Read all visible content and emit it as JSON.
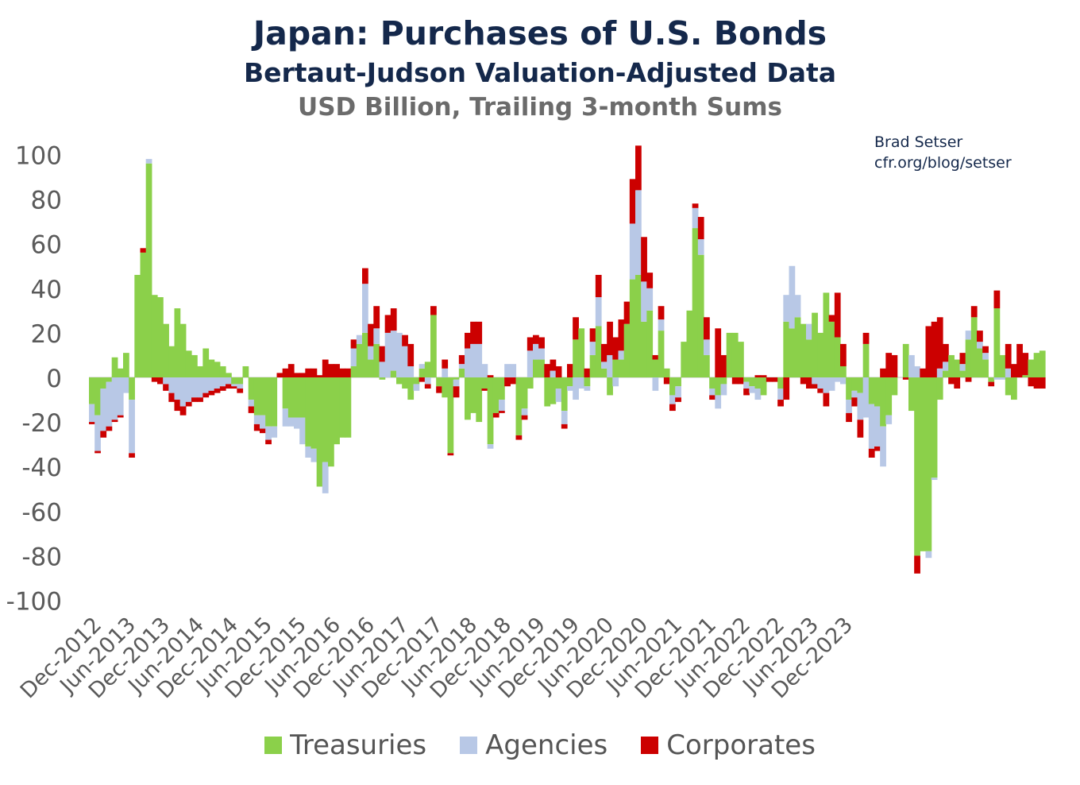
{
  "title": "Japan: Purchases of U.S. Bonds",
  "subtitle": "Bertaut-Judson Valuation-Adjusted Data",
  "units": "USD Billion, Trailing 3-month Sums",
  "credit": {
    "line1": "Brad Setser",
    "line2": "cfr.org/blog/setser"
  },
  "colors": {
    "treasuries": "#8bd04a",
    "agencies": "#b8c8e6",
    "corporates": "#cc0000",
    "axis": "#e2e2e2"
  },
  "chart_data": {
    "type": "bar",
    "stacked": true,
    "ylim": [
      -100,
      100
    ],
    "yticks": [
      "100",
      "80",
      "60",
      "40",
      "20",
      "0",
      "-20",
      "-40",
      "-60",
      "-80",
      "-100"
    ],
    "xticks": [
      "Dec-2012",
      "Jun-2013",
      "Dec-2013",
      "Jun-2014",
      "Dec-2014",
      "Jun-2015",
      "Dec-2015",
      "Jun-2016",
      "Dec-2016",
      "Jun-2017",
      "Dec-2017",
      "Jun-2018",
      "Dec-2018",
      "Jun-2019",
      "Dec-2019",
      "Jun-2020",
      "Dec-2020",
      "Jun-2021",
      "Dec-2021",
      "Jun-2022",
      "Dec-2022",
      "Jun-2023",
      "Dec-2023"
    ],
    "legend_position": "bottom",
    "series": [
      {
        "name": "Treasuries",
        "key": "t",
        "values": [
          -12,
          -17,
          -5,
          -2,
          9,
          4,
          11,
          -10,
          46,
          56,
          96,
          37,
          36,
          24,
          14,
          31,
          24,
          12,
          10,
          5,
          13,
          8,
          7,
          5,
          2,
          -3,
          -3,
          5,
          -10,
          -17,
          -17,
          -22,
          -22,
          0,
          -14,
          -18,
          -18,
          -18,
          -31,
          -32,
          -49,
          -38,
          -40,
          -30,
          -27,
          -27,
          5,
          15,
          20,
          8,
          15,
          -1,
          0,
          3,
          -3,
          -5,
          -10,
          -3,
          4,
          7,
          28,
          -4,
          -9,
          -34,
          -1,
          4,
          -19,
          -16,
          -20,
          -5,
          -30,
          -16,
          -10,
          0,
          0,
          -26,
          -14,
          -5,
          8,
          8,
          -13,
          -12,
          -5,
          -15,
          -4,
          17,
          22,
          -4,
          10,
          23,
          4,
          -8,
          8,
          8,
          24,
          44,
          46,
          25,
          30,
          8,
          21,
          4,
          -8,
          -4,
          16,
          30,
          67,
          55,
          10,
          -5,
          -8,
          -3,
          20,
          20,
          16,
          -2,
          -4,
          -5,
          -8,
          0,
          0,
          -5,
          25,
          22,
          27,
          24,
          17,
          29,
          20,
          38,
          25,
          18,
          5,
          -10,
          -6,
          -7,
          15,
          -12,
          -13,
          -22,
          -17,
          -8,
          0,
          15,
          -15,
          -80,
          -78,
          -78,
          -45,
          -10,
          3,
          10,
          8,
          3,
          17,
          27,
          13,
          8,
          -2,
          31,
          10,
          -8,
          -10,
          0,
          1,
          8,
          11,
          12
        ],
        "labels_note": "read from stacked bar heights"
      },
      {
        "name": "Agencies",
        "key": "a",
        "values": [
          -8,
          -16,
          -19,
          -20,
          -19,
          -17,
          -7,
          -24,
          0,
          0,
          2,
          0,
          0,
          -3,
          -7,
          -10,
          -13,
          -11,
          -9,
          -9,
          -7,
          -6,
          -5,
          -4,
          -3,
          -1,
          -2,
          0,
          -3,
          -4,
          -6,
          -6,
          -5,
          0,
          -8,
          -4,
          -5,
          -12,
          -5,
          -6,
          0,
          -14,
          0,
          0,
          0,
          0,
          8,
          4,
          22,
          6,
          7,
          7,
          20,
          18,
          20,
          14,
          5,
          -3,
          2,
          -3,
          0,
          0,
          4,
          0,
          -3,
          2,
          13,
          15,
          15,
          6,
          -2,
          0,
          -5,
          6,
          6,
          0,
          -3,
          12,
          7,
          5,
          0,
          3,
          -6,
          -6,
          -2,
          -10,
          -5,
          -2,
          6,
          13,
          3,
          10,
          -4,
          4,
          0,
          25,
          38,
          18,
          10,
          -6,
          5,
          0,
          -4,
          -5,
          0,
          0,
          9,
          7,
          7,
          -3,
          -6,
          -5,
          0,
          0,
          0,
          -3,
          -3,
          -5,
          0,
          0,
          0,
          -5,
          12,
          28,
          10,
          0,
          7,
          -3,
          -5,
          -7,
          -6,
          -2,
          -3,
          -6,
          -3,
          -12,
          -18,
          -20,
          -18,
          -18,
          -4,
          0,
          0,
          0,
          10,
          5,
          0,
          -3,
          -1,
          4,
          4,
          0,
          0,
          3,
          4,
          0,
          3,
          3,
          0,
          -1,
          -1,
          4,
          0,
          0,
          0
        ],
        "labels_note": "read from stacked bar heights"
      },
      {
        "name": "Corporates",
        "key": "c",
        "values": [
          -1,
          -1,
          -3,
          -2,
          -1,
          -1,
          0,
          -2,
          0,
          2,
          0,
          -2,
          -3,
          -3,
          -4,
          -5,
          -4,
          -2,
          -2,
          -2,
          -2,
          -2,
          -2,
          -2,
          -2,
          -1,
          -2,
          0,
          -3,
          -3,
          -2,
          -2,
          0,
          2,
          4,
          6,
          2,
          2,
          4,
          4,
          1,
          8,
          6,
          6,
          4,
          4,
          4,
          0,
          7,
          10,
          10,
          7,
          8,
          10,
          0,
          5,
          10,
          0,
          -2,
          -2,
          4,
          -3,
          4,
          -1,
          -5,
          4,
          7,
          10,
          10,
          -1,
          1,
          -2,
          -1,
          -4,
          -3,
          -2,
          -2,
          6,
          4,
          5,
          6,
          5,
          5,
          -2,
          6,
          10,
          0,
          4,
          6,
          10,
          8,
          15,
          10,
          14,
          10,
          20,
          20,
          20,
          7,
          2,
          6,
          -3,
          -3,
          -2,
          0,
          0,
          2,
          10,
          10,
          -2,
          22,
          10,
          0,
          -3,
          -3,
          -3,
          0,
          1,
          1,
          -2,
          -2,
          -3,
          -10,
          0,
          0,
          -3,
          -5,
          -2,
          -2,
          -6,
          3,
          20,
          10,
          -4,
          -4,
          -8,
          5,
          -4,
          -2,
          4,
          11,
          10,
          0,
          -1,
          0,
          -8,
          4,
          23,
          25,
          23,
          8,
          -3,
          -5,
          5,
          -2,
          5,
          5,
          3,
          -2,
          8,
          0,
          11,
          6,
          15,
          10,
          -4,
          -5,
          -5,
          -5
        ],
        "labels_note": "read from stacked bar heights"
      }
    ]
  },
  "legend": [
    {
      "label": "Treasuries",
      "color_key": "treasuries"
    },
    {
      "label": "Agencies",
      "color_key": "agencies"
    },
    {
      "label": "Corporates",
      "color_key": "corporates"
    }
  ]
}
